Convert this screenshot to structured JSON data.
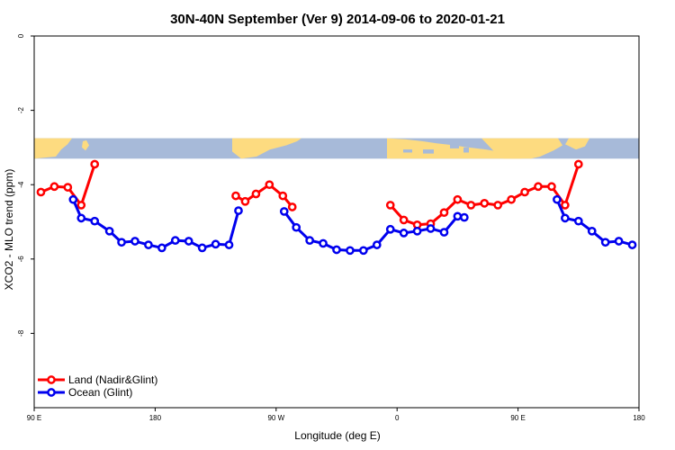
{
  "chart_data": {
    "type": "line",
    "title": "30N-40N September (Ver 9)   2014-09-06 to 2020-01-21",
    "xlabel": "Longitude (deg E)",
    "ylabel": "XCO2 - MLO trend (ppm)",
    "xlim": [
      90,
      540
    ],
    "ylim": [
      -10,
      0
    ],
    "x_ticks": [
      {
        "value": 90,
        "label": "90 E"
      },
      {
        "value": 180,
        "label": "180"
      },
      {
        "value": 270,
        "label": "90 W"
      },
      {
        "value": 360,
        "label": "0"
      },
      {
        "value": 450,
        "label": "90 E"
      },
      {
        "value": 540,
        "label": "180"
      }
    ],
    "y_ticks": [
      {
        "value": 0,
        "label": "0"
      },
      {
        "value": -2,
        "label": "-2"
      },
      {
        "value": -4,
        "label": "-4"
      },
      {
        "value": -6,
        "label": "-6"
      },
      {
        "value": -8,
        "label": "-8"
      }
    ],
    "map_band": {
      "y_top": -2.75,
      "y_bottom": -3.3,
      "ocean_color": "#a7bad9",
      "land_color": "#fddb80"
    },
    "series": [
      {
        "name": "Land (Nadir&Glint)",
        "color": "#ff0000",
        "segments": [
          [
            [
              95,
              -4.2
            ],
            [
              105,
              -4.05
            ],
            [
              115,
              -4.07
            ],
            [
              125,
              -4.55
            ],
            [
              135,
              -3.45
            ]
          ],
          [
            [
              240,
              -4.3
            ],
            [
              247,
              -4.45
            ],
            [
              255,
              -4.25
            ],
            [
              265,
              -4.0
            ],
            [
              275,
              -4.3
            ],
            [
              282,
              -4.6
            ]
          ],
          [
            [
              355,
              -4.55
            ],
            [
              365,
              -4.95
            ],
            [
              375,
              -5.08
            ],
            [
              385,
              -5.05
            ],
            [
              395,
              -4.75
            ],
            [
              405,
              -4.4
            ],
            [
              415,
              -4.55
            ],
            [
              425,
              -4.5
            ],
            [
              435,
              -4.55
            ],
            [
              445,
              -4.4
            ],
            [
              455,
              -4.2
            ],
            [
              465,
              -4.05
            ],
            [
              475,
              -4.05
            ],
            [
              485,
              -4.55
            ],
            [
              495,
              -3.45
            ]
          ]
        ]
      },
      {
        "name": "Ocean (Glint)",
        "color": "#0000ee",
        "segments": [
          [
            [
              119,
              -4.4
            ],
            [
              125,
              -4.9
            ],
            [
              135,
              -4.98
            ],
            [
              146,
              -5.25
            ],
            [
              155,
              -5.55
            ],
            [
              165,
              -5.52
            ],
            [
              175,
              -5.62
            ],
            [
              185,
              -5.7
            ],
            [
              195,
              -5.5
            ],
            [
              205,
              -5.52
            ],
            [
              215,
              -5.7
            ],
            [
              225,
              -5.6
            ],
            [
              235,
              -5.62
            ],
            [
              242,
              -4.7
            ]
          ],
          [
            [
              276,
              -4.72
            ],
            [
              285,
              -5.15
            ],
            [
              295,
              -5.5
            ],
            [
              305,
              -5.58
            ],
            [
              315,
              -5.75
            ],
            [
              325,
              -5.77
            ],
            [
              335,
              -5.77
            ],
            [
              345,
              -5.62
            ],
            [
              355,
              -5.2
            ],
            [
              365,
              -5.3
            ],
            [
              375,
              -5.25
            ],
            [
              385,
              -5.18
            ],
            [
              395,
              -5.28
            ],
            [
              405,
              -4.85
            ],
            [
              410,
              -4.88
            ]
          ],
          [
            [
              479,
              -4.4
            ],
            [
              485,
              -4.9
            ],
            [
              495,
              -4.98
            ],
            [
              505,
              -5.25
            ],
            [
              515,
              -5.55
            ],
            [
              525,
              -5.52
            ],
            [
              535,
              -5.62
            ]
          ]
        ]
      }
    ],
    "legend": {
      "position": "bottom-left",
      "entries": [
        {
          "label": "Land (Nadir&Glint)",
          "color": "#ff0000"
        },
        {
          "label": "Ocean (Glint)",
          "color": "#0000ee"
        }
      ]
    },
    "grid": false
  }
}
